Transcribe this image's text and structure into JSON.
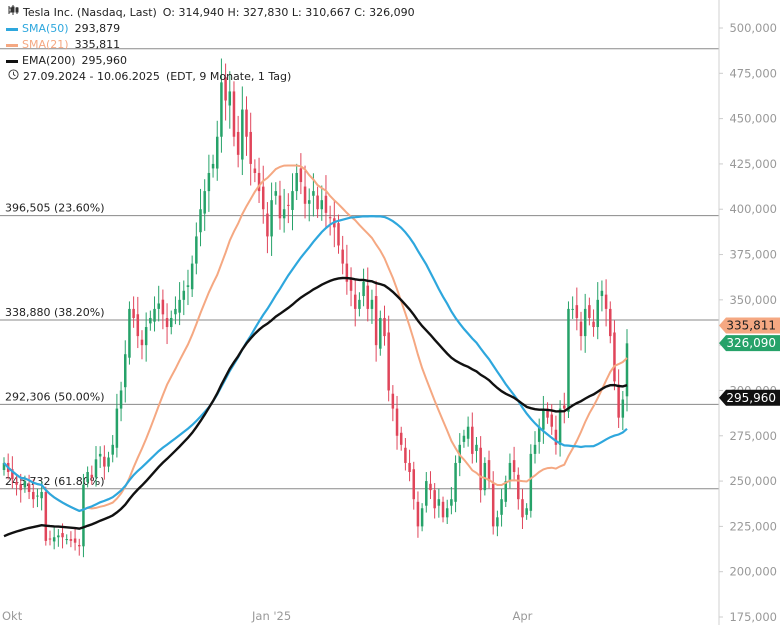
{
  "legend": {
    "title": "Tesla Inc. (Nasdaq, Last)",
    "ohlc": "O: 314,940  H: 327,830  L: 310,667  C: 326,090",
    "sma50_label": "SMA(50)",
    "sma50_value": "293,879",
    "sma21_label": "SMA(21)",
    "sma21_value": "335,811",
    "ema200_label": "EMA(200)",
    "ema200_value": "295,960",
    "range": "27.09.2024 - 10.06.2025",
    "range_detail": "(EDT, 9 Monate, 1 Tag)",
    "chart_icon": "candlestick-chart-icon",
    "clock_icon": "clock-icon"
  },
  "colors": {
    "up": "#26a269",
    "down": "#e0455a",
    "sma50": "#2ea7dd",
    "sma21": "#f5a882",
    "ema200": "#111111",
    "fib": "#8a8a8a",
    "axis_text": "#999999"
  },
  "chart_data": {
    "type": "candlestick",
    "ylim": [
      175000,
      500000
    ],
    "y_ticks": [
      "500,000",
      "475,000",
      "450,000",
      "425,000",
      "400,000",
      "375,000",
      "350,000",
      "325,000",
      "300,000",
      "275,000",
      "250,000",
      "225,000",
      "200,000",
      "175,000"
    ],
    "y_tick_values": [
      500000,
      475000,
      450000,
      425000,
      400000,
      375000,
      350000,
      325000,
      300000,
      275000,
      250000,
      225000,
      200000,
      175000
    ],
    "x_ticks": [
      {
        "label": "Okt",
        "index": 2
      },
      {
        "label": "Jan '25",
        "index": 64
      },
      {
        "label": "Apr",
        "index": 124
      }
    ],
    "fib_levels": [
      {
        "label": "396,505 (23.60%)",
        "value": 396505
      },
      {
        "label": "338,880 (38.20%)",
        "value": 338880
      },
      {
        "label": "292,306 (50.00%)",
        "value": 292306
      },
      {
        "label": "245,732 (61.80%)",
        "value": 245732
      }
    ],
    "top_line": 488540,
    "price_badges": [
      {
        "name": "SMA(21)",
        "value": 335811,
        "label": "335,811"
      },
      {
        "name": "Last",
        "value": 326090,
        "label": "326,090"
      },
      {
        "name": "EMA(200)",
        "value": 295960,
        "label": "295,960"
      }
    ],
    "closes": [
      260,
      255,
      251,
      248,
      245,
      250,
      244,
      240,
      242,
      244,
      217,
      218,
      219,
      220,
      219,
      218,
      217,
      216,
      214,
      248,
      255,
      252,
      262,
      265,
      258,
      263,
      270,
      290,
      300,
      320,
      345,
      340,
      330,
      325,
      335,
      340,
      345,
      348,
      342,
      335,
      340,
      345,
      350,
      355,
      358,
      370,
      385,
      400,
      410,
      420,
      425,
      440,
      470,
      460,
      465,
      440,
      430,
      455,
      440,
      425,
      420,
      410,
      400,
      385,
      405,
      410,
      395,
      400,
      402,
      410,
      420,
      415,
      403,
      405,
      410,
      400,
      405,
      398,
      395,
      390,
      380,
      370,
      360,
      355,
      345,
      350,
      360,
      345,
      350,
      325,
      340,
      330,
      300,
      290,
      275,
      270,
      260,
      255,
      240,
      225,
      235,
      250,
      245,
      235,
      240,
      230,
      235,
      240,
      260,
      270,
      275,
      280,
      265,
      270,
      245,
      260,
      250,
      225,
      230,
      240,
      250,
      260,
      255,
      240,
      230,
      235,
      265,
      270,
      280,
      290,
      285,
      280,
      270,
      290,
      290,
      345,
      345,
      340,
      330,
      345,
      340,
      335,
      350,
      355,
      345,
      330,
      305,
      285,
      295,
      326
    ]
  }
}
